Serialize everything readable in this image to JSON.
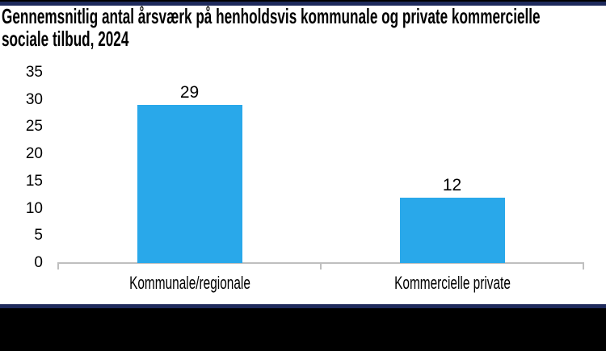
{
  "colors": {
    "bar": "#29A8EA",
    "axis": "#BFBFBF",
    "border_navy": "#1E2A5C",
    "page_black": "#000000",
    "canvas_white": "#FFFFFF",
    "text": "#000000"
  },
  "title_lines": [
    "Gennemsnitlig antal årsværk på henholdsvis kommunale og private kommercielle",
    "sociale tilbud, 2024"
  ],
  "chart_data": {
    "type": "bar",
    "title": "Gennemsnitlig antal årsværk på henholdsvis kommunale og private kommercielle sociale tilbud, 2024",
    "categories": [
      "Kommunale/regionale",
      "Kommercielle private"
    ],
    "values": [
      29,
      12
    ],
    "data_labels": [
      "29",
      "12"
    ],
    "yticks": [
      0,
      5,
      10,
      15,
      20,
      25,
      30,
      35
    ],
    "ylim": [
      0,
      35
    ],
    "xlabel": "",
    "ylabel": "",
    "grid": false,
    "legend_position": "none",
    "bar_color": "#29A8EA",
    "axis_color": "#BFBFBF"
  }
}
